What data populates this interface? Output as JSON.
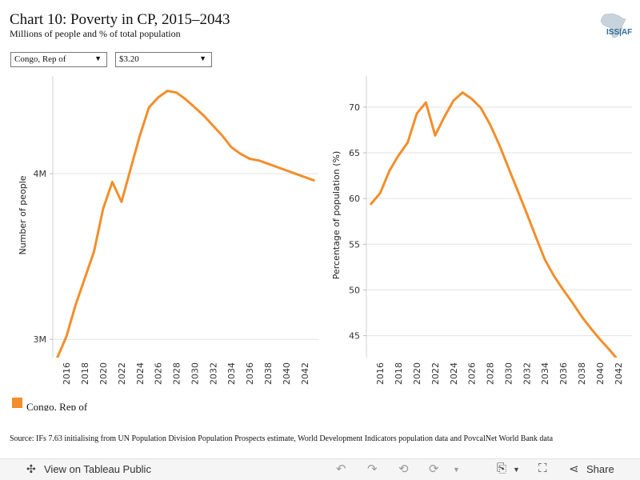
{
  "header": {
    "title": "Chart 10: Poverty in CP, 2015–2043",
    "subtitle": "Millions of people and % of total population",
    "logo_text": "ISS|AF"
  },
  "filters": {
    "country": "Congo, Rep of",
    "poverty_line": "$3.20"
  },
  "legend": {
    "label": "Congo, Rep of",
    "color": "#f28e2b"
  },
  "source": "Source: IFs 7.63 initialising from UN Population Division Population Prospects estimate, World Development Indicators population data and PovcalNet World Bank data",
  "toolbar": {
    "view_label": "View on Tableau Public",
    "share_label": "Share",
    "icons": [
      "tableau-logo-icon",
      "undo-icon",
      "redo-icon",
      "revert-icon",
      "refresh-icon",
      "download-icon",
      "fullscreen-icon",
      "share-icon"
    ]
  },
  "chart_data": [
    {
      "type": "line",
      "ylabel": "Number of people",
      "xlabel": "",
      "yticks": [
        3,
        4
      ],
      "ytick_labels": [
        "3M",
        "4M"
      ],
      "ylim": [
        2.89,
        4.59
      ],
      "xlim": [
        2014.5,
        2043.5
      ],
      "xticks": [
        2016,
        2018,
        2020,
        2022,
        2024,
        2026,
        2028,
        2030,
        2032,
        2034,
        2036,
        2038,
        2040,
        2042
      ],
      "grid": true,
      "series": [
        {
          "name": "Congo, Rep of",
          "color": "#f28e2b",
          "x": [
            2015,
            2016,
            2017,
            2018,
            2019,
            2020,
            2021,
            2022,
            2023,
            2024,
            2025,
            2026,
            2027,
            2028,
            2029,
            2030,
            2031,
            2032,
            2033,
            2034,
            2035,
            2036,
            2037,
            2038,
            2039,
            2040,
            2041,
            2042,
            2043
          ],
          "values": [
            2.89,
            3.02,
            3.21,
            3.37,
            3.53,
            3.79,
            3.95,
            3.83,
            4.03,
            4.23,
            4.4,
            4.46,
            4.5,
            4.49,
            4.45,
            4.4,
            4.35,
            4.29,
            4.23,
            4.16,
            4.12,
            4.09,
            4.08,
            4.06,
            4.04,
            4.02,
            4.0,
            3.98,
            3.96
          ]
        }
      ]
    },
    {
      "type": "line",
      "ylabel": "Percentage of population (%)",
      "xlabel": "",
      "yticks": [
        45,
        50,
        55,
        60,
        65,
        70
      ],
      "ytick_labels": [
        "45",
        "50",
        "55",
        "60",
        "65",
        "70"
      ],
      "ylim": [
        42.6,
        73.4
      ],
      "xlim": [
        2014.5,
        2043.5
      ],
      "xticks": [
        2016,
        2018,
        2020,
        2022,
        2024,
        2026,
        2028,
        2030,
        2032,
        2034,
        2036,
        2038,
        2040,
        2042
      ],
      "grid": true,
      "series": [
        {
          "name": "Congo, Rep of",
          "color": "#f28e2b",
          "x": [
            2015,
            2016,
            2017,
            2018,
            2019,
            2020,
            2021,
            2022,
            2023,
            2024,
            2025,
            2026,
            2027,
            2028,
            2029,
            2030,
            2031,
            2032,
            2033,
            2034,
            2035,
            2036,
            2037,
            2038,
            2039,
            2040,
            2041,
            2042,
            2043
          ],
          "values": [
            59.4,
            60.6,
            63.0,
            64.7,
            66.1,
            69.3,
            70.5,
            66.9,
            68.9,
            70.7,
            71.6,
            70.9,
            69.9,
            68.1,
            65.9,
            63.4,
            60.9,
            58.4,
            55.8,
            53.3,
            51.5,
            50.0,
            48.6,
            47.1,
            45.8,
            44.6,
            43.5,
            42.3,
            41.4
          ]
        }
      ]
    }
  ]
}
